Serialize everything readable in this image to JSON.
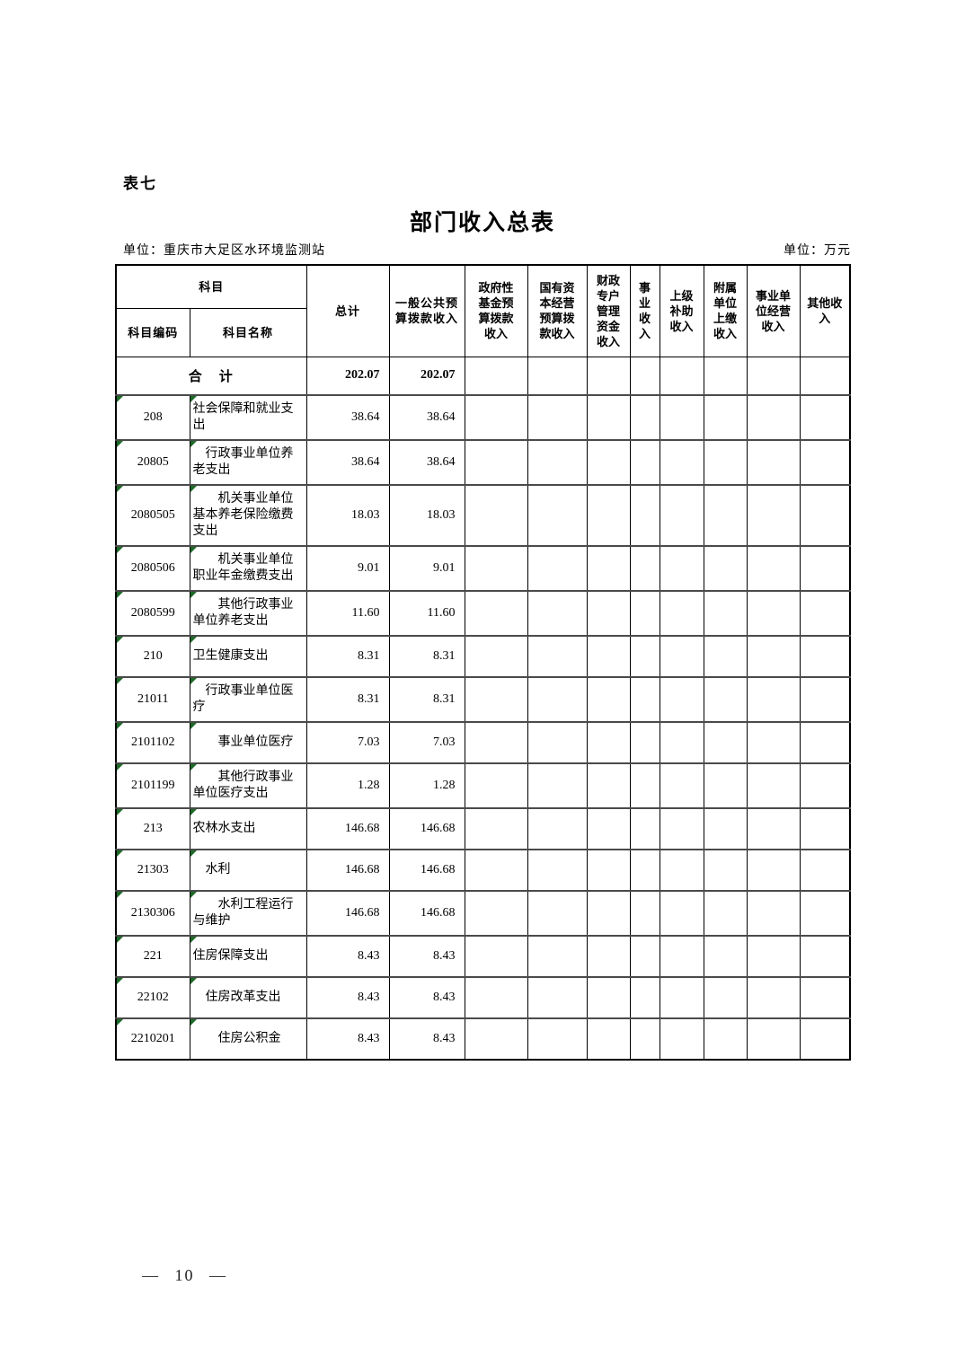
{
  "page": {
    "sheet_label": "表七",
    "title": "部门收入总表",
    "unit_left": "单位：重庆市大足区水环境监测站",
    "unit_right": "单位：万元",
    "page_number": "— 10 —"
  },
  "colors": {
    "cell_flag_green": "#1e6b28",
    "row_separator_gray": "#4a4a4a"
  },
  "table": {
    "headers": {
      "subject": "科目",
      "subject_code": "科目编码",
      "subject_name": "科目名称",
      "total": "总计",
      "general_public_budget_income": "一般公共预算拨款收入",
      "gov_fund_budget_income": "政府性基金预算拨款收入",
      "state_capital_budget_income": "国有资本经营预算拨款收入",
      "fiscal_special_account_income": "财政专户管理资金收入",
      "business_income": "事业收入",
      "superior_subsidy_income": "上级补助收入",
      "affiliated_unit_turnin_income": "附属单位上缴收入",
      "business_operation_income": "事业单位经营收入",
      "other_income": "其他收入"
    },
    "total_row": {
      "label": "合　计",
      "total": "202.07",
      "general_public_budget": "202.07"
    },
    "rows": [
      {
        "code": "208",
        "name": "社会保障和就业支出",
        "total": "38.64",
        "general_public_budget": "38.64"
      },
      {
        "code": "20805",
        "name": "行政事业单位养老支出",
        "total": "38.64",
        "general_public_budget": "38.64"
      },
      {
        "code": "2080505",
        "name": "机关事业单位基本养老保险缴费支出",
        "total": "18.03",
        "general_public_budget": "18.03"
      },
      {
        "code": "2080506",
        "name": "机关事业单位职业年金缴费支出",
        "total": "9.01",
        "general_public_budget": "9.01"
      },
      {
        "code": "2080599",
        "name": "其他行政事业单位养老支出",
        "total": "11.60",
        "general_public_budget": "11.60"
      },
      {
        "code": "210",
        "name": "卫生健康支出",
        "total": "8.31",
        "general_public_budget": "8.31"
      },
      {
        "code": "21011",
        "name": "行政事业单位医疗",
        "total": "8.31",
        "general_public_budget": "8.31"
      },
      {
        "code": "2101102",
        "name": "事业单位医疗",
        "total": "7.03",
        "general_public_budget": "7.03"
      },
      {
        "code": "2101199",
        "name": "其他行政事业单位医疗支出",
        "total": "1.28",
        "general_public_budget": "1.28"
      },
      {
        "code": "213",
        "name": "农林水支出",
        "total": "146.68",
        "general_public_budget": "146.68"
      },
      {
        "code": "21303",
        "name": "水利",
        "total": "146.68",
        "general_public_budget": "146.68"
      },
      {
        "code": "2130306",
        "name": "水利工程运行与维护",
        "total": "146.68",
        "general_public_budget": "146.68"
      },
      {
        "code": "221",
        "name": "住房保障支出",
        "total": "8.43",
        "general_public_budget": "8.43"
      },
      {
        "code": "22102",
        "name": "住房改革支出",
        "total": "8.43",
        "general_public_budget": "8.43"
      },
      {
        "code": "2210201",
        "name": "住房公积金",
        "total": "8.43",
        "general_public_budget": "8.43"
      }
    ]
  }
}
